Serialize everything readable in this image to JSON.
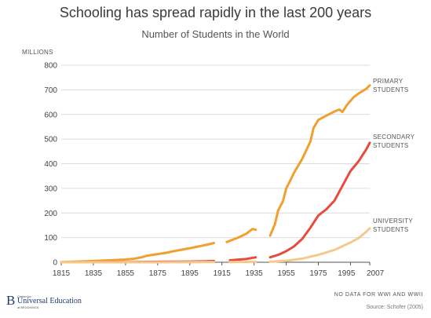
{
  "chart_data": {
    "type": "line",
    "title": "Schooling has spread rapidly in the last 200 years",
    "subtitle": "Number of Students in the World",
    "ylabel": "MILLIONS",
    "xlabel": "",
    "xlim": [
      1815,
      2007
    ],
    "ylim": [
      0,
      800
    ],
    "xticks": [
      "1815",
      "1835",
      "1855",
      "1875",
      "1895",
      "1915",
      "1935",
      "1955",
      "1975",
      "1995",
      "2007"
    ],
    "yticks": [
      "0",
      "100",
      "200",
      "300",
      "400",
      "500",
      "600",
      "700",
      "800"
    ],
    "grid": "horizontal",
    "series": [
      {
        "name": "PRIMARY STUDENTS",
        "color": "#F0A030",
        "segments": [
          [
            [
              1815,
              1
            ],
            [
              1825,
              3
            ],
            [
              1835,
              5
            ],
            [
              1845,
              8
            ],
            [
              1855,
              11
            ],
            [
              1860,
              14
            ],
            [
              1865,
              20
            ],
            [
              1868,
              26
            ],
            [
              1875,
              33
            ],
            [
              1880,
              38
            ],
            [
              1885,
              45
            ],
            [
              1895,
              57
            ],
            [
              1905,
              70
            ],
            [
              1910,
              78
            ]
          ],
          [
            [
              1918,
              82
            ],
            [
              1925,
              100
            ],
            [
              1930,
              115
            ],
            [
              1934,
              135
            ],
            [
              1936,
              132
            ]
          ],
          [
            [
              1945,
              108
            ],
            [
              1948,
              155
            ],
            [
              1950,
              210
            ],
            [
              1953,
              248
            ],
            [
              1955,
              300
            ],
            [
              1957,
              325
            ],
            [
              1960,
              365
            ],
            [
              1965,
              420
            ],
            [
              1970,
              490
            ],
            [
              1972,
              545
            ],
            [
              1975,
              578
            ],
            [
              1980,
              595
            ],
            [
              1985,
              612
            ],
            [
              1988,
              620
            ],
            [
              1990,
              610
            ],
            [
              1993,
              640
            ],
            [
              1997,
              670
            ],
            [
              2000,
              685
            ],
            [
              2005,
              705
            ],
            [
              2007,
              718
            ]
          ]
        ]
      },
      {
        "name": "SECONDARY STUDENTS",
        "color": "#E84A3C",
        "segments": [
          [
            [
              1815,
              0
            ],
            [
              1855,
              1
            ],
            [
              1875,
              2
            ],
            [
              1895,
              3
            ],
            [
              1905,
              4
            ],
            [
              1910,
              5
            ]
          ],
          [
            [
              1920,
              8
            ],
            [
              1930,
              13
            ],
            [
              1936,
              20
            ]
          ],
          [
            [
              1945,
              20
            ],
            [
              1950,
              30
            ],
            [
              1955,
              45
            ],
            [
              1960,
              65
            ],
            [
              1965,
              95
            ],
            [
              1970,
              140
            ],
            [
              1975,
              190
            ],
            [
              1980,
              215
            ],
            [
              1985,
              250
            ],
            [
              1990,
              310
            ],
            [
              1995,
              370
            ],
            [
              2000,
              410
            ],
            [
              2005,
              460
            ],
            [
              2007,
              485
            ]
          ]
        ]
      },
      {
        "name": "UNIVERSITY STUDENTS",
        "color": "#F5C98C",
        "segments": [
          [
            [
              1815,
              0
            ],
            [
              1875,
              0
            ],
            [
              1910,
              1
            ]
          ],
          [
            [
              1920,
              1
            ],
            [
              1936,
              2
            ]
          ],
          [
            [
              1945,
              2
            ],
            [
              1955,
              6
            ],
            [
              1965,
              15
            ],
            [
              1975,
              30
            ],
            [
              1985,
              50
            ],
            [
              1995,
              80
            ],
            [
              2000,
              98
            ],
            [
              2005,
              125
            ],
            [
              2007,
              138
            ]
          ]
        ]
      }
    ],
    "annotations": {
      "primary": [
        "PRIMARY",
        "STUDENTS"
      ],
      "secondary": [
        "SECONDARY",
        "STUDENTS"
      ],
      "university": [
        "UNIVERSITY",
        "STUDENTS"
      ]
    }
  },
  "footer": {
    "note": "NO DATA FOR WWI AND WWII",
    "source": "Source: Schofer (2005)"
  },
  "logo": {
    "letter": "B",
    "small": "Center for",
    "main": "Universal Education",
    "sub": "at BROOKINGS"
  },
  "colors": {
    "grid": "#dcdcdc",
    "axis": "#555555",
    "primary": "#F0A030",
    "secondary": "#E84A3C",
    "university": "#F5C98C",
    "brand": "#1f3b73"
  }
}
